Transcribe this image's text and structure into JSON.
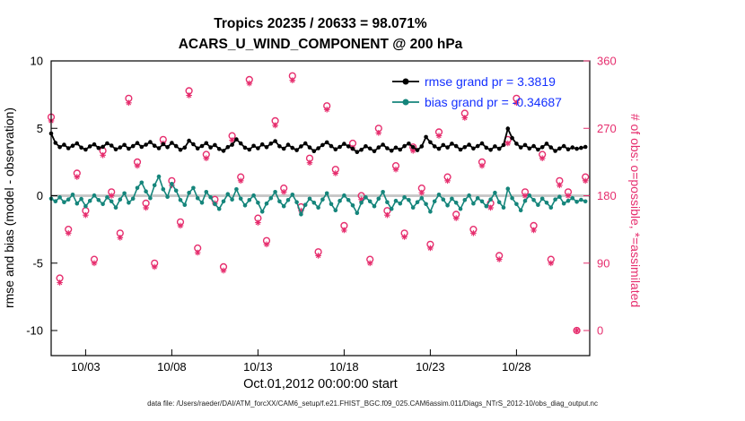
{
  "chart_data": {
    "type": "line",
    "title": "Tropics 20235 / 20633 = 98.071%",
    "subtitle": "ACARS_U_WIND_COMPONENT @ 200 hPa",
    "xlabel": "Oct.01,2012 00:00:00 start",
    "ylabel_left": "rmse and bias (model - observation)",
    "ylabel_right": "# of obs: o=possible, *=assimilated",
    "caption": "data file: /Users/raeder/DAI/ATM_forcXX/CAM6_setup/f.e21.FHIST_BGC.f09_025.CAM6assim.011/Diags_NTrS_2012-10/obs_diag_output.nc",
    "ylim_left": [
      -10,
      10
    ],
    "ylim_right": [
      0,
      360
    ],
    "yticks_left": [
      10,
      5,
      0,
      -5,
      -10
    ],
    "yticks_right": [
      360,
      270,
      180,
      90,
      0
    ],
    "x_days_max": 31.25,
    "xticks": [
      {
        "day": 2,
        "label": "10/03"
      },
      {
        "day": 7,
        "label": "10/08"
      },
      {
        "day": 12,
        "label": "10/13"
      },
      {
        "day": 17,
        "label": "10/18"
      },
      {
        "day": 22,
        "label": "10/23"
      },
      {
        "day": 27,
        "label": "10/28"
      }
    ],
    "colors": {
      "obs_pink": "#e62e6e",
      "bias_teal": "#15857b",
      "legend_blue": "#1430ff",
      "zero_line": "#c8c8c8",
      "axis_black": "#000000"
    },
    "legend": {
      "text_color": "#1430ff",
      "entries": [
        {
          "label": "rmse grand pr = 3.3819",
          "color": "#000000"
        },
        {
          "label": "bias grand pr = -0.34687",
          "color": "#15857b"
        }
      ]
    },
    "series": [
      {
        "name": "rmse grand pr = 3.3819",
        "axis": "left",
        "marker": "filled-circle",
        "color": "#000000",
        "x_start_day": 0,
        "x_step_days": 0.25,
        "values": [
          4.62,
          3.92,
          3.61,
          3.78,
          3.52,
          3.71,
          3.88,
          3.57,
          3.42,
          3.66,
          3.81,
          3.54,
          3.63,
          3.89,
          3.72,
          3.44,
          3.58,
          3.77,
          3.49,
          3.68,
          3.91,
          3.62,
          3.79,
          3.98,
          3.71,
          3.52,
          3.83,
          3.6,
          3.92,
          3.68,
          3.41,
          3.57,
          4.08,
          3.82,
          3.51,
          3.69,
          3.9,
          3.58,
          3.76,
          3.47,
          3.33,
          3.61,
          3.78,
          4.18,
          3.88,
          3.56,
          3.42,
          3.7,
          3.52,
          3.81,
          3.6,
          3.87,
          4.05,
          3.67,
          3.49,
          3.78,
          3.55,
          3.38,
          3.66,
          3.88,
          3.58,
          3.31,
          3.52,
          3.76,
          3.96,
          3.68,
          3.44,
          3.62,
          3.85,
          3.66,
          3.48,
          3.24,
          3.41,
          3.67,
          3.5,
          3.3,
          3.58,
          3.79,
          3.52,
          3.34,
          3.57,
          3.42,
          3.68,
          3.87,
          3.6,
          3.38,
          3.66,
          4.36,
          3.97,
          3.66,
          3.48,
          3.76,
          3.58,
          3.86,
          3.68,
          3.42,
          3.6,
          3.78,
          3.5,
          3.68,
          3.88,
          3.56,
          3.4,
          3.66,
          3.48,
          3.76,
          4.98,
          4.28,
          3.86,
          3.58,
          3.76,
          3.5,
          3.68,
          3.42,
          3.6,
          3.86,
          3.58,
          3.32,
          3.5,
          3.68,
          3.44,
          3.58,
          3.48,
          3.55,
          3.62
        ]
      },
      {
        "name": "bias grand pr = -0.34687",
        "axis": "left",
        "marker": "filled-circle",
        "color": "#15857b",
        "x_start_day": 0,
        "x_step_days": 0.25,
        "values": [
          -0.22,
          -0.41,
          -0.12,
          -0.48,
          -0.28,
          0.08,
          -0.58,
          -0.24,
          -0.78,
          -0.38,
          0.02,
          -0.32,
          -0.62,
          -0.12,
          -0.42,
          -0.88,
          -0.28,
          0.18,
          -0.52,
          -0.22,
          0.58,
          0.98,
          0.32,
          -0.18,
          0.78,
          1.42,
          0.48,
          -0.08,
          0.88,
          0.38,
          -0.32,
          -0.68,
          0.22,
          0.58,
          -0.18,
          -0.52,
          0.28,
          -0.12,
          -0.62,
          -0.98,
          -0.42,
          0.12,
          -0.28,
          0.48,
          -0.22,
          -0.72,
          -0.32,
          0.02,
          -0.52,
          -1.18,
          -0.58,
          -0.18,
          0.28,
          -0.42,
          -0.78,
          -0.32,
          0.08,
          -0.48,
          -1.38,
          -0.68,
          -0.22,
          -0.52,
          -0.88,
          -0.28,
          0.18,
          -0.62,
          -1.08,
          -0.38,
          0.02,
          -0.32,
          -0.72,
          -1.28,
          -0.52,
          -0.12,
          -0.42,
          -0.78,
          -0.22,
          0.28,
          -0.48,
          -0.98,
          -0.38,
          -0.58,
          -0.12,
          -0.32,
          -0.88,
          -0.48,
          -0.18,
          -0.62,
          -1.18,
          -0.42,
          0.08,
          -0.28,
          -0.72,
          -0.22,
          -0.52,
          -0.98,
          -0.32,
          0.02,
          -0.58,
          -0.18,
          -0.42,
          -0.78,
          -0.28,
          0.22,
          -0.48,
          -0.88,
          0.52,
          -0.18,
          -0.62,
          -1.08,
          -0.38,
          0.02,
          -0.32,
          -0.68,
          -0.22,
          -0.52,
          -0.88,
          -0.28,
          -0.08,
          -0.58,
          -0.38,
          -0.18,
          -0.45,
          -0.3,
          -0.42
        ]
      },
      {
        "name": "# of obs possible",
        "axis": "right",
        "marker": "open-circle",
        "color": "#e62e6e",
        "x_start_day": 0,
        "x_step_days": 0.5,
        "values": [
          285,
          70,
          135,
          210,
          160,
          95,
          240,
          185,
          130,
          310,
          225,
          170,
          90,
          255,
          200,
          145,
          320,
          110,
          235,
          175,
          85,
          260,
          205,
          335,
          150,
          120,
          280,
          190,
          340,
          165,
          230,
          105,
          300,
          215,
          140,
          250,
          180,
          95,
          270,
          160,
          220,
          130,
          245,
          190,
          115,
          265,
          205,
          155,
          290,
          135,
          225,
          170,
          100,
          255,
          310,
          185,
          140,
          235,
          95,
          200,
          185,
          0,
          205
        ]
      },
      {
        "name": "# of obs assimilated",
        "axis": "right",
        "marker": "asterisk",
        "color": "#e62e6e",
        "x_start_day": 0,
        "x_step_days": 0.5,
        "values": [
          280,
          64,
          130,
          205,
          154,
          90,
          234,
          180,
          124,
          304,
          220,
          164,
          85,
          250,
          194,
          140,
          314,
          104,
          230,
          170,
          80,
          254,
          200,
          330,
          144,
          115,
          274,
          185,
          334,
          160,
          224,
          100,
          295,
          210,
          134,
          244,
          175,
          90,
          264,
          154,
          215,
          125,
          240,
          184,
          110,
          260,
          200,
          150,
          284,
          130,
          220,
          164,
          95,
          250,
          304,
          180,
          134,
          230,
          90,
          194,
          180,
          0,
          200
        ]
      }
    ]
  }
}
